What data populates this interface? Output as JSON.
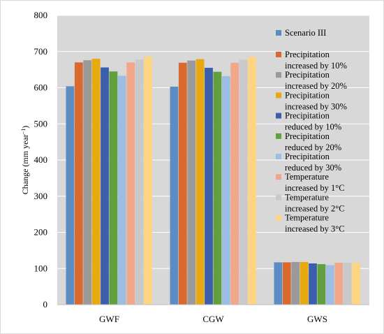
{
  "chart_data": {
    "type": "bar",
    "title": "",
    "xlabel": "",
    "ylabel": "Change (mm year",
    "ylabel_superscript": "−1",
    "ylabel_close": ")",
    "ylim": [
      0,
      800
    ],
    "yticks": [
      "0",
      "100",
      "200",
      "300",
      "400",
      "500",
      "600",
      "700",
      "800"
    ],
    "ytick_values": [
      0,
      100,
      200,
      300,
      400,
      500,
      600,
      700,
      800
    ],
    "grid": "on",
    "legend_position": "right",
    "categories": [
      "GWF",
      "CGW",
      "GWS"
    ],
    "series": [
      {
        "name_lines": [
          "Scenario III"
        ],
        "color": "#5b8cc4",
        "values": [
          604,
          603,
          117
        ]
      },
      {
        "name_lines": [
          "Precipitation",
          "increased by 10%"
        ],
        "color": "#d9692e",
        "values": [
          670,
          669,
          117
        ]
      },
      {
        "name_lines": [
          "Precipitation",
          "increased by 20%"
        ],
        "color": "#9a9a9a",
        "values": [
          676,
          675,
          118
        ]
      },
      {
        "name_lines": [
          "Precipitation",
          "increased by 30%"
        ],
        "color": "#e8a90e",
        "values": [
          680,
          679,
          118
        ]
      },
      {
        "name_lines": [
          "Precipitation",
          "reduced by 10%"
        ],
        "color": "#3b5fab",
        "values": [
          656,
          655,
          114
        ]
      },
      {
        "name_lines": [
          "Precipitation",
          "reduced by 20%"
        ],
        "color": "#62a03f",
        "values": [
          645,
          644,
          112
        ]
      },
      {
        "name_lines": [
          "Precipitation",
          "reduced by 30%"
        ],
        "color": "#9dbee2",
        "values": [
          633,
          632,
          109
        ]
      },
      {
        "name_lines": [
          "Temperature",
          "increased by 1°C"
        ],
        "color": "#f2a78a",
        "values": [
          670,
          669,
          116
        ]
      },
      {
        "name_lines": [
          "Temperature",
          "increased by 2°C"
        ],
        "color": "#c9c9c9",
        "values": [
          678,
          677,
          116
        ]
      },
      {
        "name_lines": [
          "Temperature",
          "increased by 3°C"
        ],
        "color": "#fdd582",
        "values": [
          686,
          685,
          115
        ]
      }
    ]
  }
}
